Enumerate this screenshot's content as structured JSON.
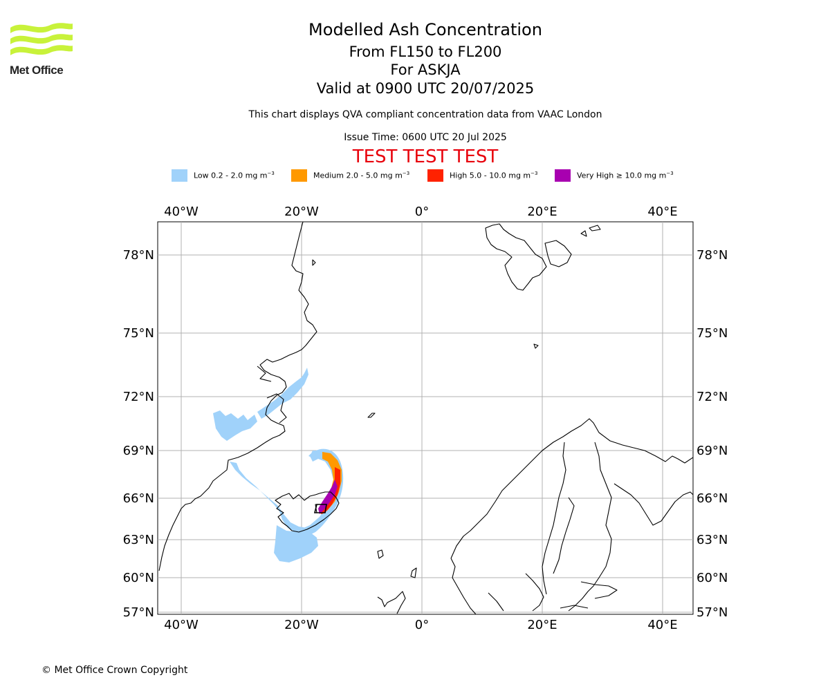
{
  "branding": {
    "logo_text": "Met Office",
    "logo_color": "#c8f23a",
    "copyright": "© Met Office Crown Copyright"
  },
  "header": {
    "title": "Modelled Ash Concentration",
    "level_range": "From FL150 to FL200",
    "volcano": "For ASKJA",
    "valid": "Valid at 0900 UTC 20/07/2025",
    "subtitle": "This chart displays QVA compliant concentration data from VAAC London",
    "issue_time": "Issue Time: 0600 UTC 20 Jul 2025",
    "test_banner": "TEST TEST TEST",
    "test_color": "#e8000b"
  },
  "legend": [
    {
      "label": "Low 0.2 - 2.0 mg m",
      "unit_exp": "−3",
      "color": "#a0d2fa"
    },
    {
      "label": "Medium 2.0 - 5.0 mg m",
      "unit_exp": "−3",
      "color": "#ff9900"
    },
    {
      "label": "High 5.0 - 10.0 mg m",
      "unit_exp": "−3",
      "color": "#ff2200"
    },
    {
      "label": "Very High  ≥  10.0 mg m",
      "unit_exp": "−3",
      "color": "#a800b0"
    }
  ],
  "map": {
    "lon_ticks": [
      "40°W",
      "20°W",
      "0°",
      "20°E",
      "40°E"
    ],
    "lat_ticks": [
      "78°N",
      "75°N",
      "72°N",
      "69°N",
      "66°N",
      "63°N",
      "60°N",
      "57°N"
    ],
    "lon_range": [
      -44,
      45
    ],
    "lat_range": [
      56.5,
      79.3
    ],
    "lon_values": [
      -40,
      -20,
      0,
      20,
      40
    ],
    "lat_values": [
      78,
      75,
      72,
      69,
      66,
      63,
      60,
      57
    ],
    "volcano_name": "ASKJA"
  }
}
